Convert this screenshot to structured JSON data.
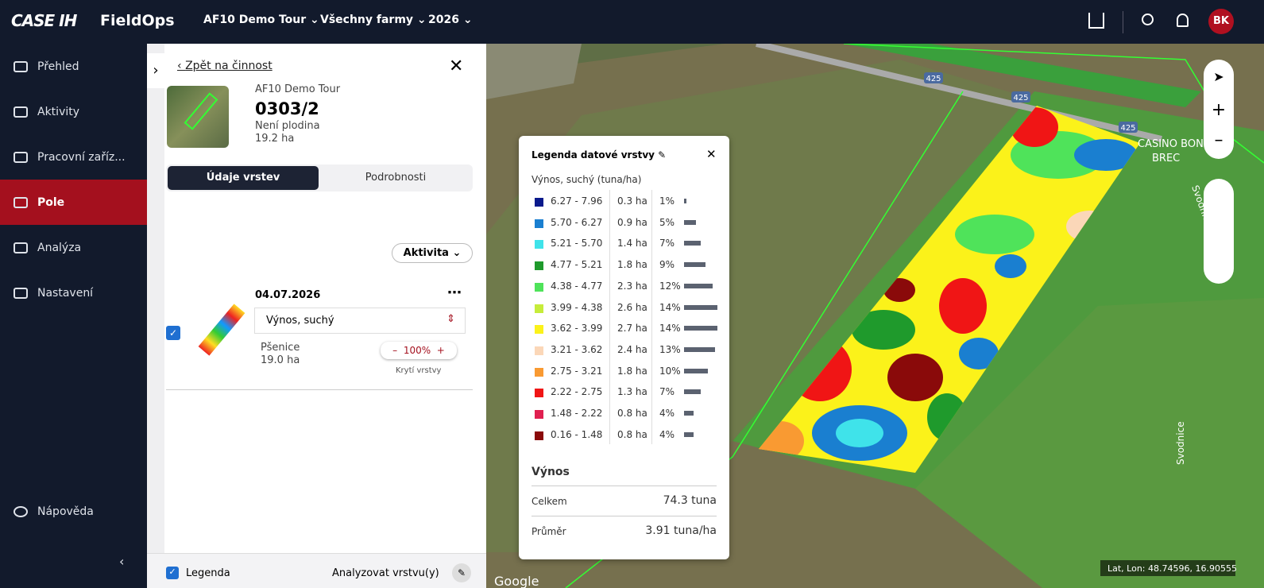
{
  "header": {
    "brand": "CASE IH",
    "product": "FieldOps",
    "menus": [
      "AF10 Demo Tour",
      "Všechny farmy",
      "2026"
    ],
    "avatar": "BK"
  },
  "nav": {
    "items": [
      "Přehled",
      "Aktivity",
      "Pracovní zaříz...",
      "Pole",
      "Analýza",
      "Nastavení"
    ],
    "help": "Nápověda"
  },
  "panel": {
    "back": "Zpět na činnost",
    "farm": "AF10 Demo Tour",
    "field": "0303/2",
    "crop": "Není plodina",
    "area": "19.2 ha",
    "tabs": [
      "Údaje vrstev",
      "Podrobnosti"
    ],
    "filter": "Aktivita",
    "date": "04.07.2026",
    "layer": "Výnos, suchý",
    "layer_crop": "Pšenice",
    "layer_area": "19.0 ha",
    "opacity": "100%",
    "opacity_label": "Krytí vrstvy",
    "legend_toggle": "Legenda",
    "analyze": "Analyzovat vrstvu(y)"
  },
  "legend": {
    "title": "Legenda datové vrstvy",
    "subtitle": "Výnos, suchý (tuna/ha)",
    "rows": [
      {
        "range": "6.27 - 7.96",
        "area": "0.3 ha",
        "share": {
          "value": 1,
          "label": "1%"
        },
        "color": "#0a1a8c"
      },
      {
        "range": "5.70 - 6.27",
        "area": "0.9 ha",
        "share": {
          "value": 5,
          "label": "5%"
        },
        "color": "#1a7fd0"
      },
      {
        "range": "5.21 - 5.70",
        "area": "1.4 ha",
        "share": {
          "value": 7,
          "label": "7%"
        },
        "color": "#3fe3ea"
      },
      {
        "range": "4.77 - 5.21",
        "area": "1.8 ha",
        "share": {
          "value": 9,
          "label": "9%"
        },
        "color": "#1f9a2c"
      },
      {
        "range": "4.38 - 4.77",
        "area": "2.3 ha",
        "share": {
          "value": 12,
          "label": "12%"
        },
        "color": "#4fe35a"
      },
      {
        "range": "3.99 - 4.38",
        "area": "2.6 ha",
        "share": {
          "value": 14,
          "label": "14%"
        },
        "color": "#c6ec3a"
      },
      {
        "range": "3.62 - 3.99",
        "area": "2.7 ha",
        "share": {
          "value": 14,
          "label": "14%"
        },
        "color": "#fbf21a"
      },
      {
        "range": "3.21 - 3.62",
        "area": "2.4 ha",
        "share": {
          "value": 13,
          "label": "13%"
        },
        "color": "#fbd7b8"
      },
      {
        "range": "2.75 - 3.21",
        "area": "1.8 ha",
        "share": {
          "value": 10,
          "label": "10%"
        },
        "color": "#f99a32"
      },
      {
        "range": "2.22 - 2.75",
        "area": "1.3 ha",
        "share": {
          "value": 7,
          "label": "7%"
        },
        "color": "#f01515"
      },
      {
        "range": "1.48 - 2.22",
        "area": "0.8 ha",
        "share": {
          "value": 4,
          "label": "4%"
        },
        "color": "#e02050"
      },
      {
        "range": "0.16 - 1.48",
        "area": "0.8 ha",
        "share": {
          "value": 4,
          "label": "4%"
        },
        "color": "#8a0a0a"
      }
    ],
    "summary_title": "Výnos",
    "summary": [
      {
        "label": "Celkem",
        "value": "74.3 tuna"
      },
      {
        "label": "Průměr",
        "value": "3.91 tuna/ha"
      }
    ]
  },
  "map": {
    "roads": [
      "425",
      "425",
      "425"
    ],
    "places": [
      "CASINO BON",
      "BREC",
      "Svodnice",
      "Svodnice"
    ],
    "coords": "Lat, Lon: 48.74596, 16.90555",
    "attribution": "Google"
  }
}
